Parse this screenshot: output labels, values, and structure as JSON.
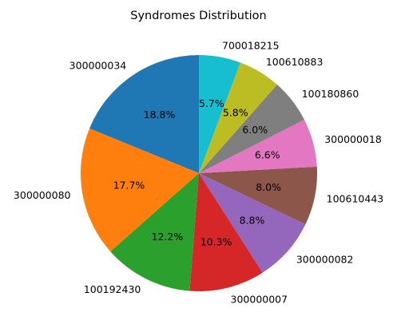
{
  "chart_data": {
    "type": "pie",
    "title": "Syndromes Distribution",
    "start_angle_deg": 90,
    "direction": "counterclockwise",
    "slices": [
      {
        "label": "300000034",
        "value": 18.8,
        "pct_label": "18.8%",
        "color": "#1f77b4"
      },
      {
        "label": "300000080",
        "value": 17.7,
        "pct_label": "17.7%",
        "color": "#ff7f0e"
      },
      {
        "label": "100192430",
        "value": 12.2,
        "pct_label": "12.2%",
        "color": "#2ca02c"
      },
      {
        "label": "300000007",
        "value": 10.3,
        "pct_label": "10.3%",
        "color": "#d62728"
      },
      {
        "label": "300000082",
        "value": 8.8,
        "pct_label": "8.8%",
        "color": "#9467bd"
      },
      {
        "label": "100610443",
        "value": 8.0,
        "pct_label": "8.0%",
        "color": "#8c564b"
      },
      {
        "label": "300000018",
        "value": 6.6,
        "pct_label": "6.6%",
        "color": "#e377c2"
      },
      {
        "label": "100180860",
        "value": 6.0,
        "pct_label": "6.0%",
        "color": "#7f7f7f"
      },
      {
        "label": "100610883",
        "value": 5.8,
        "pct_label": "5.8%",
        "color": "#bcbd22"
      },
      {
        "label": "700018215",
        "value": 5.7,
        "pct_label": "5.7%",
        "color": "#17becf"
      }
    ]
  }
}
